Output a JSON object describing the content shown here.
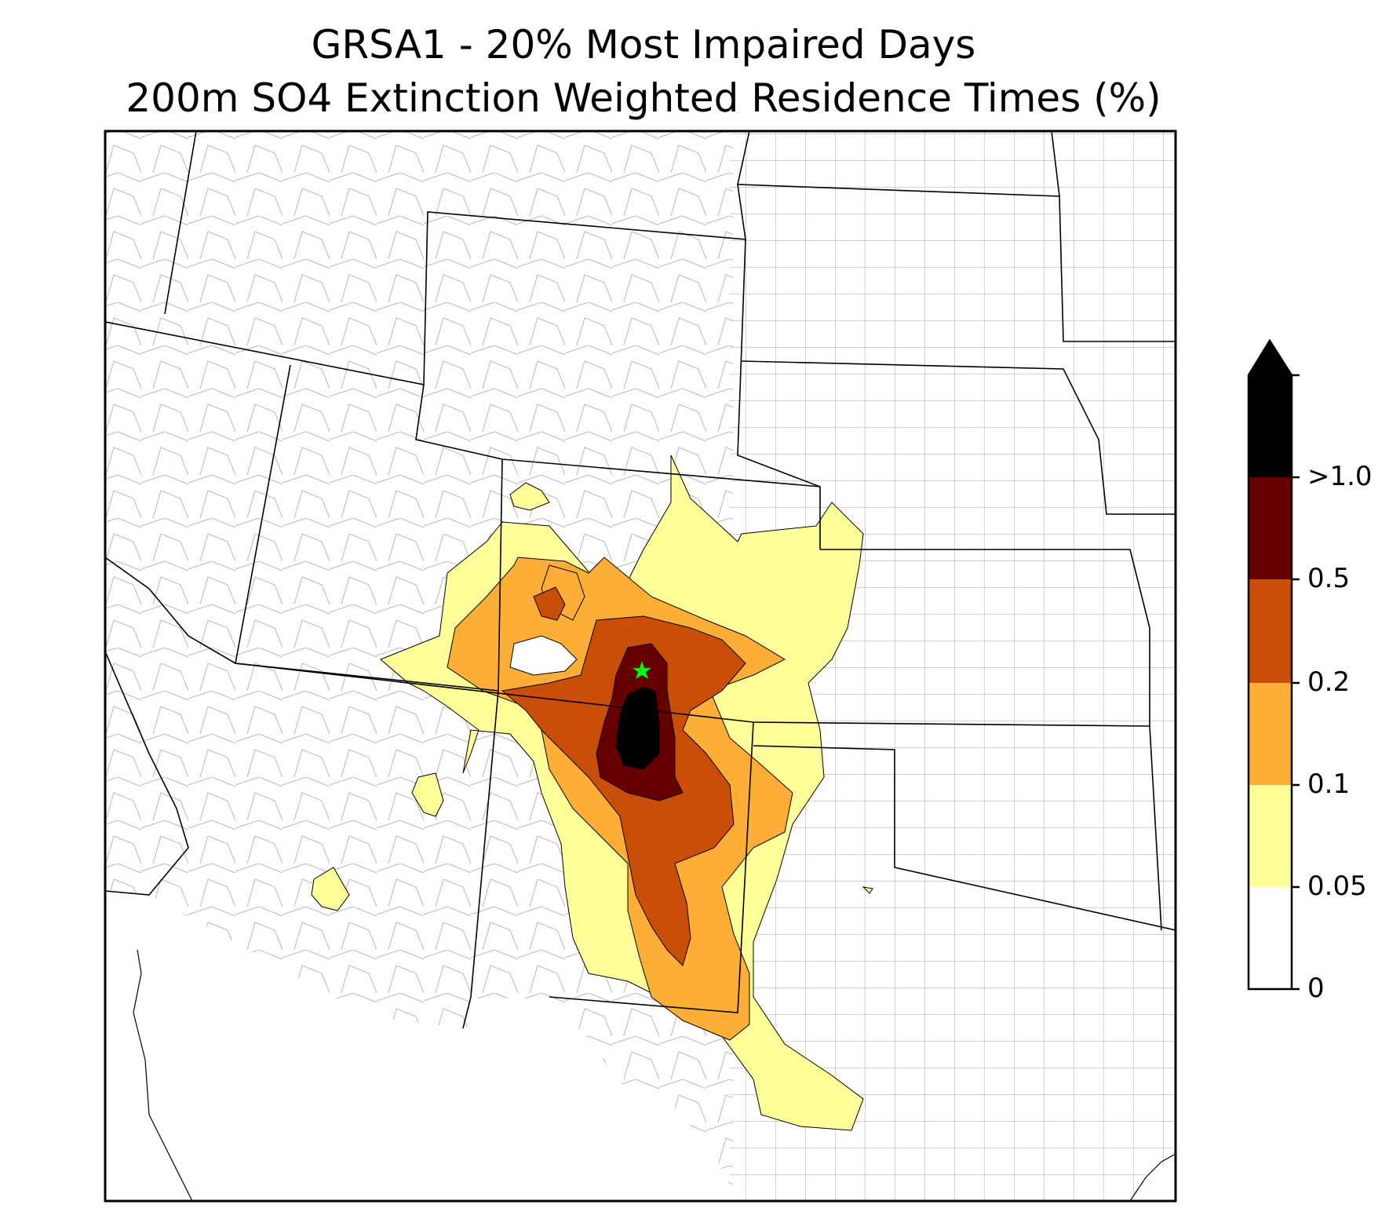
{
  "title": {
    "line1": "GRSA1 - 20% Most Impaired Days",
    "line2": "200m SO4 Extinction Weighted Residence Times (%)"
  },
  "colorbar": {
    "levels": [
      {
        "label": "0",
        "color": "#ffffff"
      },
      {
        "label": "0.05",
        "color": "#ffff99"
      },
      {
        "label": "0.1",
        "color": "#fcae36"
      },
      {
        "label": "0.2",
        "color": "#c94e08"
      },
      {
        "label": "0.5",
        "color": "#660000"
      },
      {
        "label": ">1.0",
        "color": "#000000"
      }
    ],
    "extend": "max"
  },
  "marker": {
    "name": "GRSA1",
    "symbol": "star",
    "color": "#00ff00"
  },
  "map_colors": {
    "state_border": "#000000",
    "county_border": "#aaaaaa"
  }
}
